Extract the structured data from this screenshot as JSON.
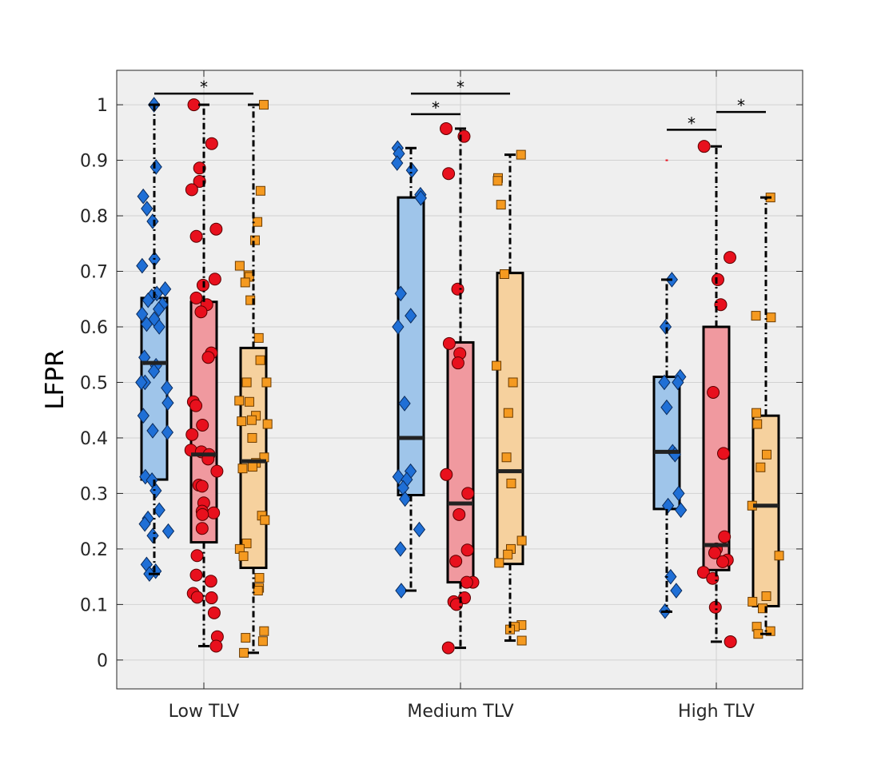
{
  "chart_data": {
    "type": "boxplot",
    "title": "",
    "xlabel": "",
    "ylabel": "LFPR",
    "ylim": [
      -0.052,
      1.062
    ],
    "yticks": [
      0,
      0.1,
      0.2,
      0.3,
      0.4,
      0.5,
      0.6,
      0.7,
      0.8,
      0.9,
      1
    ],
    "ytick_labels": [
      "0",
      "0.1",
      "0.2",
      "0.3",
      "0.4",
      "0.5",
      "0.6",
      "0.7",
      "0.8",
      "0.9",
      "1"
    ],
    "grid": true,
    "background": "#efefef",
    "series_styles": [
      {
        "marker": "diamond",
        "box_fill": "#9fc5ea",
        "point_fill": "#1f6fd6"
      },
      {
        "marker": "circle",
        "box_fill": "#f0999f",
        "point_fill": "#e8101d"
      },
      {
        "marker": "square",
        "box_fill": "#f6d19e",
        "point_fill": "#f59a20"
      }
    ],
    "groups": [
      {
        "label": "Low TLV",
        "boxes": [
          {
            "q1": 0.325,
            "median": 0.535,
            "q3": 0.652,
            "whisker_low": 0.155,
            "whisker_high": 1.0,
            "points": [
              1.0,
              0.888,
              0.835,
              0.813,
              0.79,
              0.722,
              0.71,
              0.668,
              0.66,
              0.655,
              0.648,
              0.64,
              0.632,
              0.623,
              0.614,
              0.605,
              0.6,
              0.545,
              0.53,
              0.52,
              0.5,
              0.5,
              0.49,
              0.463,
              0.44,
              0.413,
              0.41,
              0.33,
              0.324,
              0.305,
              0.27,
              0.255,
              0.245,
              0.232,
              0.224,
              0.172,
              0.16,
              0.155
            ]
          },
          {
            "q1": 0.212,
            "median": 0.37,
            "q3": 0.645,
            "whisker_low": 0.025,
            "whisker_high": 1.0,
            "points": [
              1.0,
              0.93,
              0.886,
              0.862,
              0.847,
              0.776,
              0.763,
              0.686,
              0.675,
              0.652,
              0.64,
              0.627,
              0.553,
              0.545,
              0.465,
              0.458,
              0.423,
              0.406,
              0.378,
              0.375,
              0.37,
              0.362,
              0.34,
              0.315,
              0.313,
              0.283,
              0.268,
              0.265,
              0.262,
              0.237,
              0.188,
              0.153,
              0.142,
              0.12,
              0.113,
              0.112,
              0.085,
              0.042,
              0.025
            ]
          },
          {
            "q1": 0.166,
            "median": 0.358,
            "q3": 0.562,
            "whisker_low": 0.013,
            "whisker_high": 1.0,
            "points": [
              1.0,
              0.845,
              0.789,
              0.756,
              0.71,
              0.693,
              0.69,
              0.68,
              0.648,
              0.58,
              0.54,
              0.5,
              0.5,
              0.467,
              0.465,
              0.44,
              0.432,
              0.43,
              0.425,
              0.4,
              0.365,
              0.355,
              0.348,
              0.345,
              0.26,
              0.252,
              0.21,
              0.2,
              0.187,
              0.148,
              0.13,
              0.125,
              0.052,
              0.04,
              0.034,
              0.013
            ]
          }
        ]
      },
      {
        "label": "Medium TLV",
        "boxes": [
          {
            "q1": 0.297,
            "median": 0.4,
            "q3": 0.833,
            "whisker_low": 0.125,
            "whisker_high": 0.922,
            "points": [
              0.922,
              0.912,
              0.895,
              0.882,
              0.838,
              0.832,
              0.66,
              0.62,
              0.6,
              0.462,
              0.34,
              0.33,
              0.325,
              0.31,
              0.29,
              0.235,
              0.2,
              0.125
            ]
          },
          {
            "q1": 0.14,
            "median": 0.282,
            "q3": 0.572,
            "whisker_low": 0.022,
            "whisker_high": 0.957,
            "points": [
              0.957,
              0.943,
              0.876,
              0.668,
              0.57,
              0.552,
              0.535,
              0.334,
              0.3,
              0.262,
              0.198,
              0.178,
              0.14,
              0.14,
              0.112,
              0.105,
              0.1,
              0.022
            ]
          },
          {
            "q1": 0.173,
            "median": 0.34,
            "q3": 0.697,
            "whisker_low": 0.035,
            "whisker_high": 0.91,
            "points": [
              0.91,
              0.868,
              0.863,
              0.82,
              0.695,
              0.53,
              0.5,
              0.445,
              0.365,
              0.318,
              0.215,
              0.2,
              0.19,
              0.175,
              0.063,
              0.06,
              0.055,
              0.035
            ]
          }
        ]
      },
      {
        "label": "High TLV",
        "boxes": [
          {
            "q1": 0.272,
            "median": 0.375,
            "q3": 0.51,
            "whisker_low": 0.087,
            "whisker_high": 0.685,
            "points": [
              0.685,
              0.6,
              0.51,
              0.5,
              0.5,
              0.455,
              0.375,
              0.37,
              0.3,
              0.278,
              0.27,
              0.15,
              0.125,
              0.088
            ],
            "outliers": [
              0.9
            ]
          },
          {
            "q1": 0.162,
            "median": 0.207,
            "q3": 0.6,
            "whisker_low": 0.033,
            "whisker_high": 0.925,
            "points": [
              0.925,
              0.725,
              0.685,
              0.64,
              0.482,
              0.372,
              0.222,
              0.2,
              0.193,
              0.18,
              0.177,
              0.158,
              0.147,
              0.095,
              0.033
            ]
          },
          {
            "q1": 0.097,
            "median": 0.278,
            "q3": 0.44,
            "whisker_low": 0.047,
            "whisker_high": 0.833,
            "points": [
              0.833,
              0.62,
              0.617,
              0.445,
              0.425,
              0.37,
              0.347,
              0.278,
              0.188,
              0.115,
              0.105,
              0.093,
              0.06,
              0.052,
              0.047
            ]
          }
        ]
      }
    ],
    "significance": [
      {
        "group": 0,
        "from_box": 0,
        "to_box": 2,
        "y": 1.02,
        "label": "*"
      },
      {
        "group": 1,
        "from_box": 0,
        "to_box": 2,
        "y": 1.02,
        "label": "*"
      },
      {
        "group": 1,
        "from_box": 0,
        "to_box": 1,
        "y": 0.983,
        "label": "*"
      },
      {
        "group": 2,
        "from_box": 0,
        "to_box": 1,
        "y": 0.955,
        "label": "*"
      },
      {
        "group": 2,
        "from_box": 1,
        "to_box": 2,
        "y": 0.987,
        "label": "*"
      }
    ]
  }
}
